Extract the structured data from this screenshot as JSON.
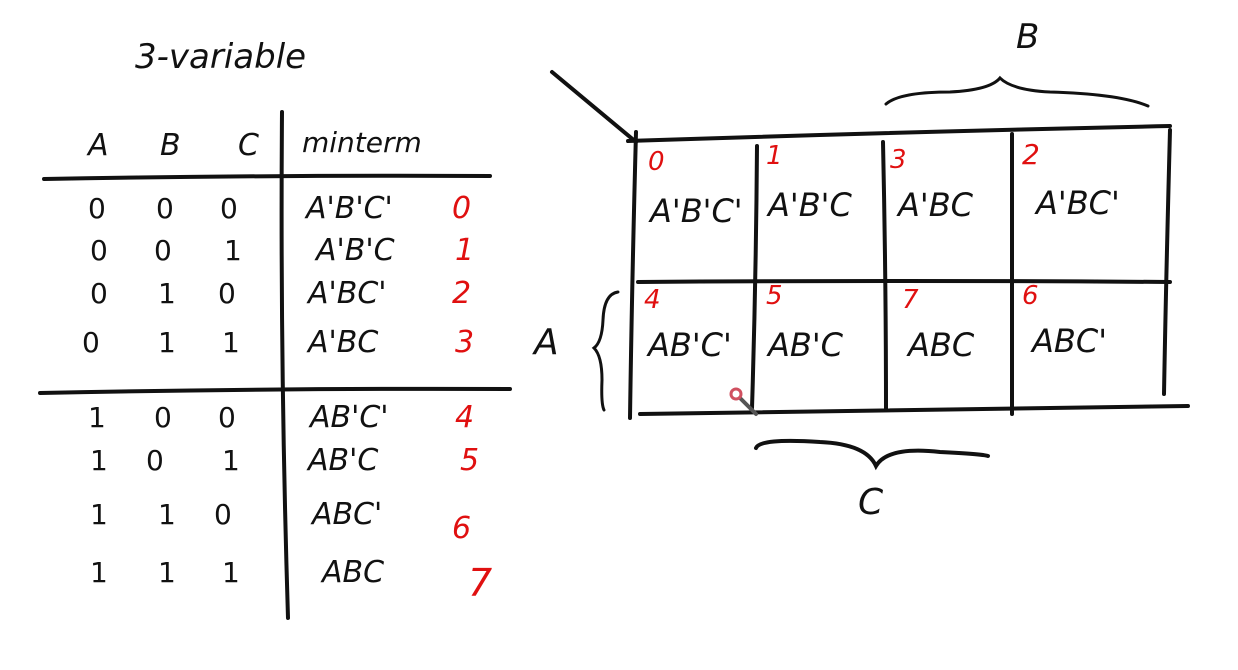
{
  "title": "3-variable",
  "truth_table": {
    "headers": [
      "A",
      "B",
      "C",
      "minterm"
    ],
    "rows": [
      {
        "a": "0",
        "b": "0",
        "c": "0",
        "minterm": "A'B'C'",
        "index": "0"
      },
      {
        "a": "0",
        "b": "0",
        "c": "1",
        "minterm": "A'B'C",
        "index": "1"
      },
      {
        "a": "0",
        "b": "1",
        "c": "0",
        "minterm": "A'BC'",
        "index": "2"
      },
      {
        "a": "0",
        "b": "1",
        "c": "1",
        "minterm": "A'BC",
        "index": "3"
      },
      {
        "a": "1",
        "b": "0",
        "c": "0",
        "minterm": "AB'C'",
        "index": "4"
      },
      {
        "a": "1",
        "b": "0",
        "c": "1",
        "minterm": "AB'C",
        "index": "5"
      },
      {
        "a": "1",
        "b": "1",
        "c": "0",
        "minterm": "ABC'",
        "index": "6"
      },
      {
        "a": "1",
        "b": "1",
        "c": "1",
        "minterm": "ABC",
        "index": "7"
      }
    ]
  },
  "kmap": {
    "label_b": "B",
    "label_a": "A",
    "label_c": "C",
    "cells": [
      {
        "index": "0",
        "term": "A'B'C'"
      },
      {
        "index": "1",
        "term": "A'B'C"
      },
      {
        "index": "3",
        "term": "A'BC"
      },
      {
        "index": "2",
        "term": "A'BC'"
      },
      {
        "index": "4",
        "term": "AB'C'"
      },
      {
        "index": "5",
        "term": "AB'C"
      },
      {
        "index": "7",
        "term": "ABC"
      },
      {
        "index": "6",
        "term": "ABC'"
      }
    ]
  },
  "colors": {
    "ink": "#111111",
    "index": "#e01010"
  }
}
